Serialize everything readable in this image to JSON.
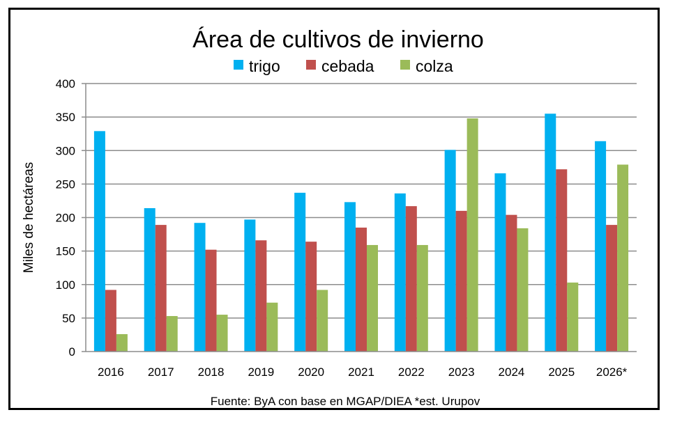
{
  "chart_data": {
    "type": "bar",
    "title": "Área de cultivos de invierno",
    "ylabel": "Miles de hectáreas",
    "xlabel": "",
    "ylim": [
      0,
      400
    ],
    "yticks": [
      0,
      50,
      100,
      150,
      200,
      250,
      300,
      350,
      400
    ],
    "grid": true,
    "legend_position": "top",
    "categories": [
      "2016",
      "2017",
      "2018",
      "2019",
      "2020",
      "2021",
      "2022",
      "2023",
      "2024",
      "2025",
      "2026*"
    ],
    "series": [
      {
        "name": "trigo",
        "color": "#00B0F0",
        "values": [
          329,
          214,
          192,
          197,
          237,
          223,
          236,
          301,
          266,
          355,
          314
        ]
      },
      {
        "name": "cebada",
        "color": "#C0504D",
        "values": [
          92,
          189,
          152,
          166,
          164,
          185,
          217,
          210,
          204,
          272,
          189
        ]
      },
      {
        "name": "colza",
        "color": "#9BBB59",
        "values": [
          26,
          53,
          55,
          73,
          92,
          159,
          159,
          348,
          184,
          103,
          279
        ]
      }
    ],
    "source_note": "Fuente: ByA con base en MGAP/DIEA *est. Urupov"
  }
}
